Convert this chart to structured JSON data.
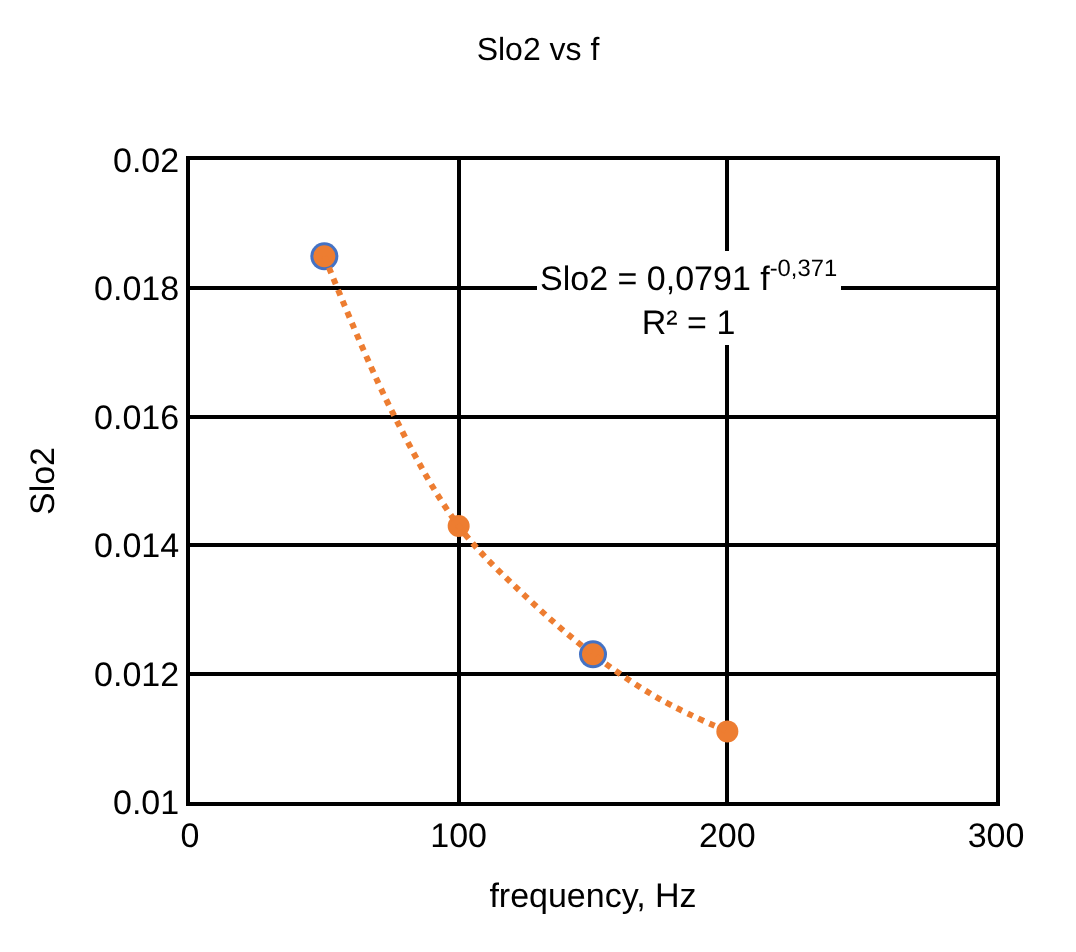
{
  "chart_data": {
    "type": "scatter",
    "title": "Slo2 vs f",
    "xlabel": "frequency, Hz",
    "ylabel": "Slo2",
    "xlim": [
      0,
      300
    ],
    "xticks": [
      0,
      100,
      200,
      300
    ],
    "ylim": [
      0.01,
      0.02
    ],
    "yticks": [
      0.01,
      0.012,
      0.014,
      0.016,
      0.018,
      0.02
    ],
    "grid": true,
    "marker": "circle",
    "series": [
      {
        "color": "#4472c4",
        "x": [
          50,
          150
        ],
        "values": [
          0.0185,
          0.0123
        ]
      },
      {
        "color": "#ed7d31",
        "x": [
          50,
          100,
          150,
          200
        ],
        "values": [
          0.0185,
          0.0143,
          0.0123,
          0.0111
        ]
      },
      {
        "type": "line",
        "color": "#ed7d31",
        "line_style": "dotted",
        "marker": "none",
        "x": [
          50,
          75,
          100,
          125,
          150,
          175,
          200
        ],
        "values": [
          0.0185,
          0.0161,
          0.0143,
          0.0132,
          0.0123,
          0.0116,
          0.0111
        ]
      }
    ],
    "annotations": [
      "Slo2 = 0,0791 f$^{-0,371}$\nR² = 1"
    ]
  }
}
